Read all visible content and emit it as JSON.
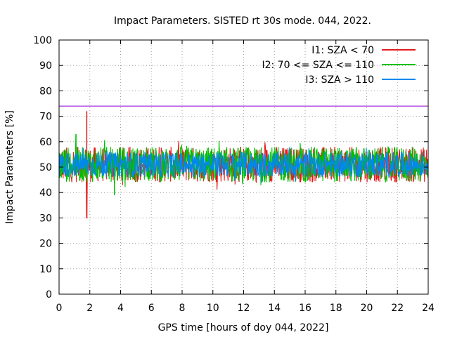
{
  "chart_data": {
    "type": "line",
    "title": "Impact Parameters. SISTED rt 30s mode. 044, 2022.",
    "xlabel": "GPS time [hours of doy 044, 2022]",
    "ylabel": "Impact Parameters [%]",
    "xlim": [
      0,
      24
    ],
    "ylim": [
      0,
      100
    ],
    "xticks": [
      0,
      2,
      4,
      6,
      8,
      10,
      12,
      14,
      16,
      18,
      20,
      22,
      24
    ],
    "yticks": [
      0,
      10,
      20,
      30,
      40,
      50,
      60,
      70,
      80,
      90,
      100
    ],
    "grid": true,
    "legend_position": "top-right",
    "reference_line": {
      "y": 74,
      "color": "#9400d3"
    },
    "series": [
      {
        "name": "I1: SZA < 70",
        "color": "#e41a1c",
        "typical_range": [
          44,
          58
        ],
        "x_range": [
          0,
          24
        ],
        "spikes": [
          {
            "x": 1.8,
            "y": 72
          },
          {
            "x": 1.8,
            "y": 30
          }
        ]
      },
      {
        "name": "I2: 70 <= SZA <= 110",
        "color": "#00c000",
        "typical_range": [
          44,
          58
        ],
        "x_range": [
          0,
          24
        ],
        "spikes": [
          {
            "x": 1.1,
            "y": 63
          },
          {
            "x": 3.6,
            "y": 39
          }
        ]
      },
      {
        "name": "I3: SZA > 110",
        "color": "#0088ee",
        "typical_range": [
          46,
          56
        ],
        "x_range": [
          0,
          24
        ],
        "spikes": []
      }
    ]
  }
}
